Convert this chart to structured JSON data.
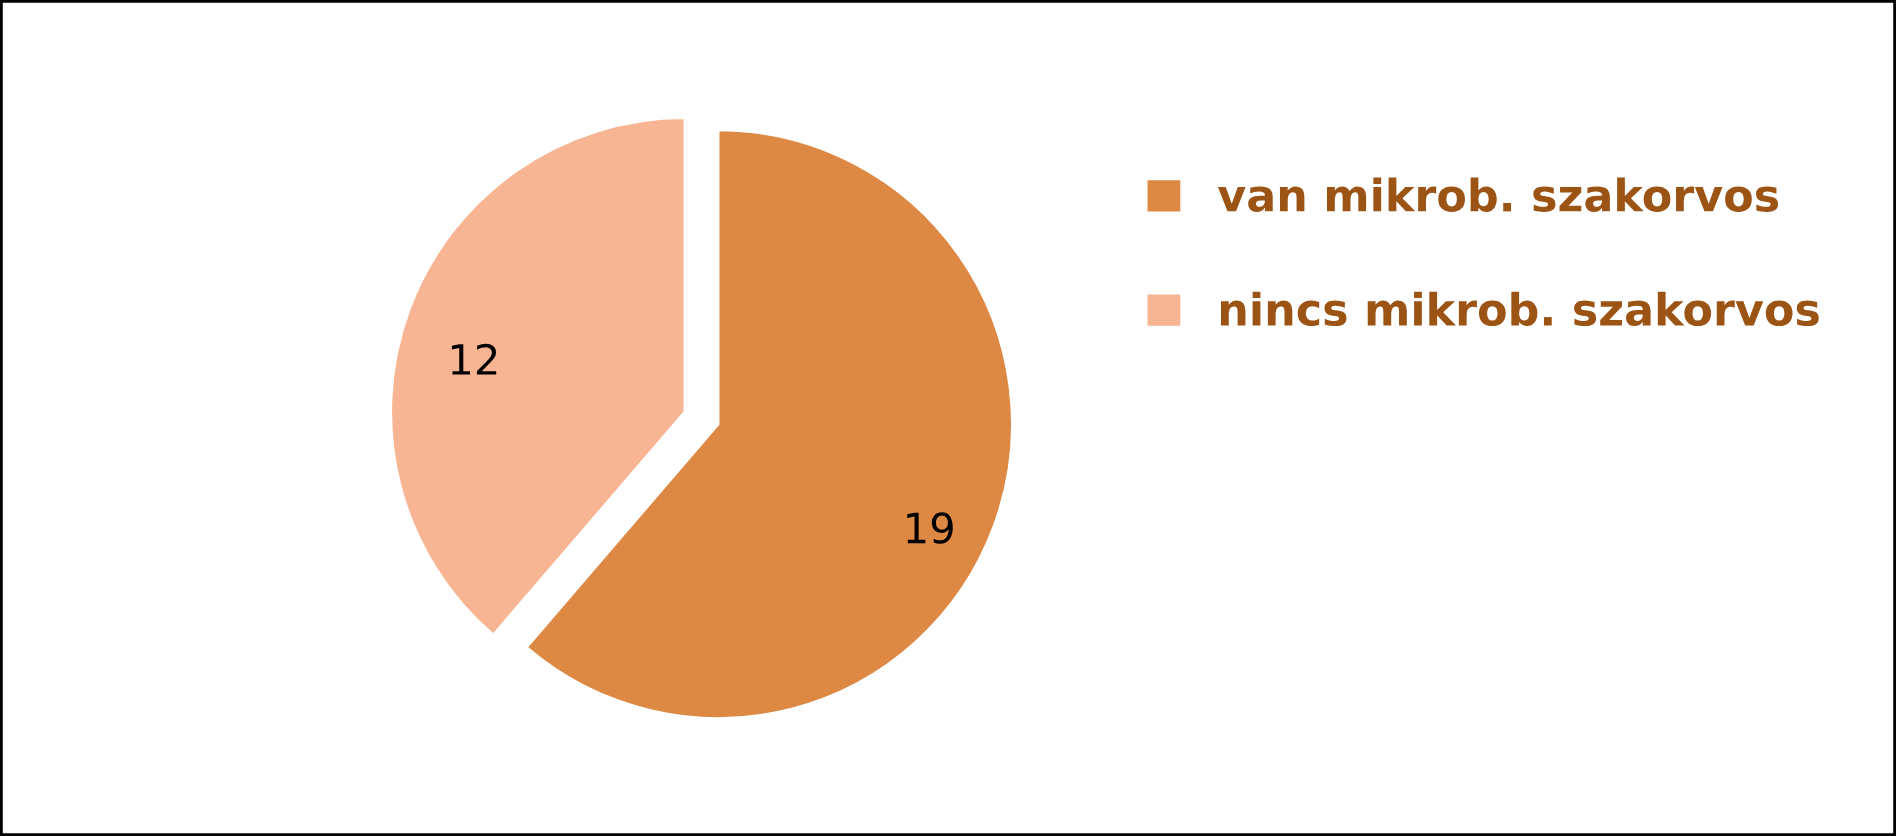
{
  "chart_data": {
    "type": "pie",
    "categories": [
      "van mikrob. szakorvos",
      "nincs mikrob. szakorvos"
    ],
    "values": [
      19,
      12
    ],
    "colors": [
      "#dd8843",
      "#f7b593"
    ],
    "data_labels": true,
    "legend": "right"
  }
}
